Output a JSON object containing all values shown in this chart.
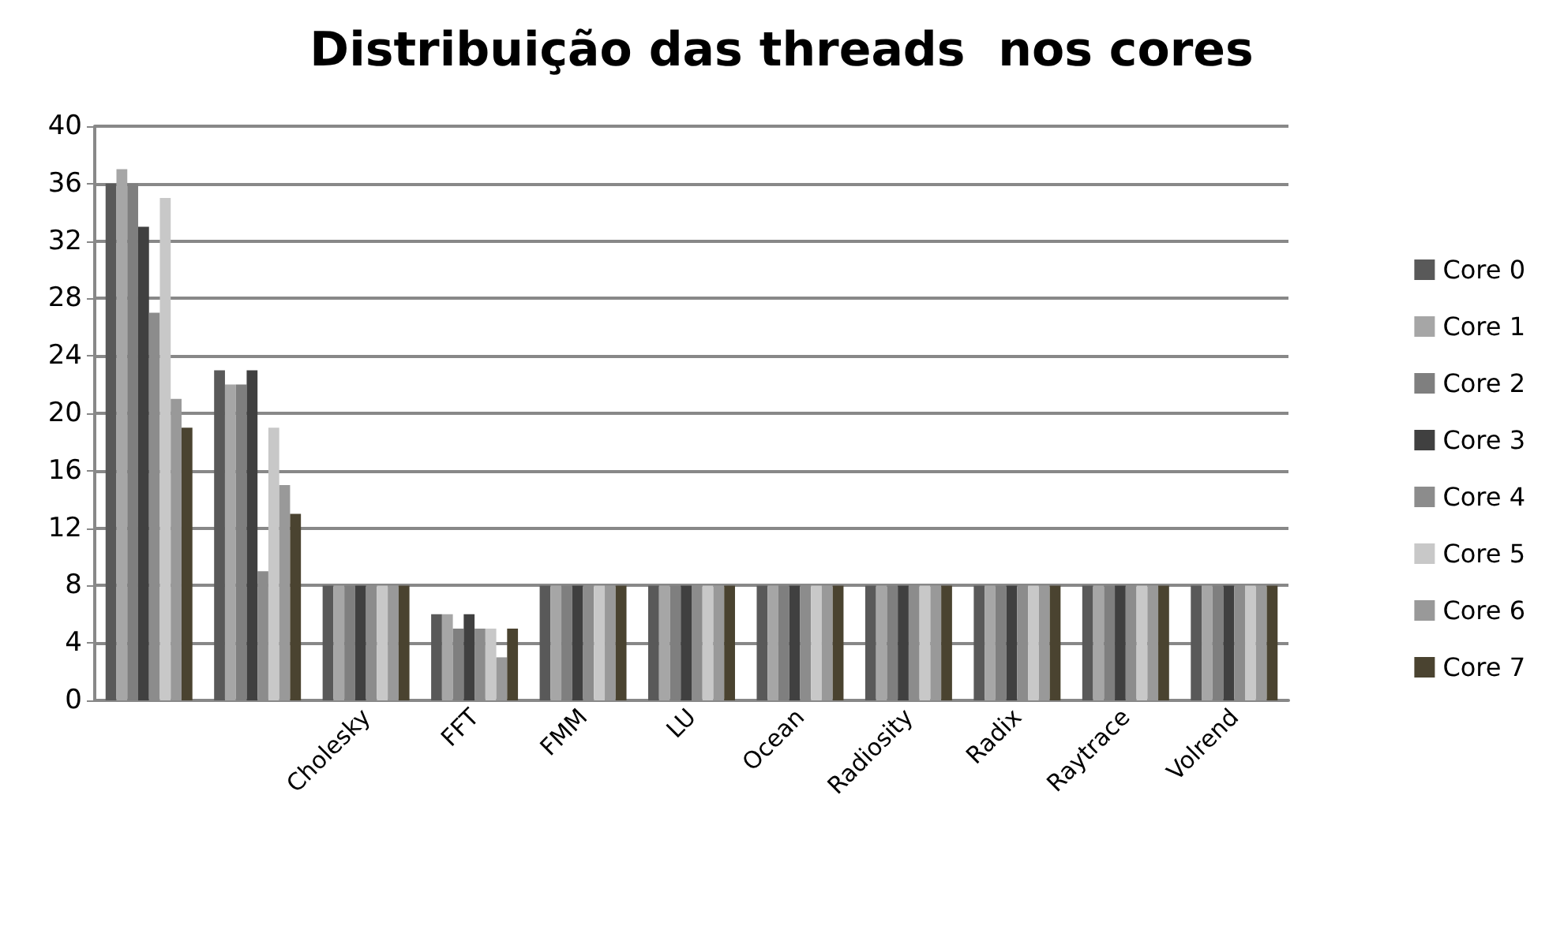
{
  "chart_data": {
    "type": "bar",
    "title": "Distribuição das threads  nos cores",
    "categories": [
      null,
      null,
      "Cholesky",
      "FFT",
      "FMM",
      "LU",
      "Ocean",
      "Radiosity",
      "Radix",
      "Raytrace",
      "Volrend"
    ],
    "series": [
      {
        "name": "Core 0",
        "color": "#595959",
        "values": [
          36,
          23,
          8,
          6,
          8,
          8,
          8,
          8,
          8,
          8,
          8
        ]
      },
      {
        "name": "Core 1",
        "color": "#a6a6a6",
        "values": [
          37,
          22,
          8,
          6,
          8,
          8,
          8,
          8,
          8,
          8,
          8
        ]
      },
      {
        "name": "Core 2",
        "color": "#7f7f7f",
        "values": [
          36,
          22,
          8,
          5,
          8,
          8,
          8,
          8,
          8,
          8,
          8
        ]
      },
      {
        "name": "Core 3",
        "color": "#404040",
        "values": [
          33,
          23,
          8,
          6,
          8,
          8,
          8,
          8,
          8,
          8,
          8
        ]
      },
      {
        "name": "Core 4",
        "color": "#8c8c8c",
        "values": [
          27,
          9,
          8,
          5,
          8,
          8,
          8,
          8,
          8,
          8,
          8
        ]
      },
      {
        "name": "Core 5",
        "color": "#c8c8c8",
        "values": [
          35,
          19,
          8,
          5,
          8,
          8,
          8,
          8,
          8,
          8,
          8
        ]
      },
      {
        "name": "Core 6",
        "color": "#999999",
        "values": [
          21,
          15,
          8,
          3,
          8,
          8,
          8,
          8,
          8,
          8,
          8
        ]
      },
      {
        "name": "Core 7",
        "color": "#4a4330",
        "values": [
          19,
          13,
          8,
          5,
          8,
          8,
          8,
          8,
          8,
          8,
          8
        ]
      }
    ],
    "ylim": [
      0,
      40
    ],
    "yticks": [
      0,
      4,
      8,
      12,
      16,
      20,
      24,
      28,
      32,
      36,
      40
    ],
    "grid": "y",
    "legend": "right"
  }
}
